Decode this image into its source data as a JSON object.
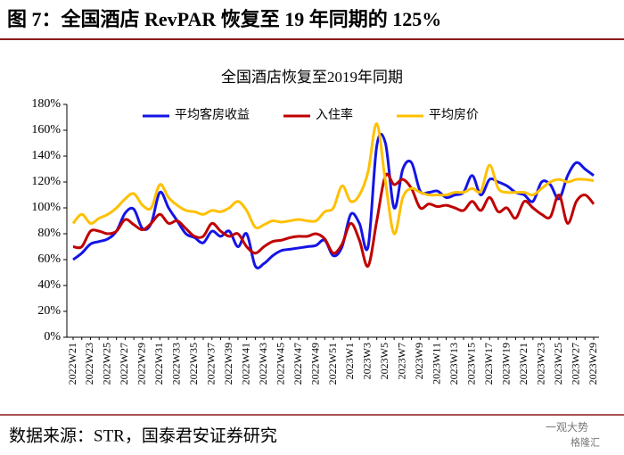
{
  "header": {
    "title": "图 7：全国酒店 RevPAR 恢复至 19 年同期的 125%"
  },
  "chart_data": {
    "type": "line",
    "title": "全国酒店恢复至2019年同期",
    "categories": [
      "2022W21",
      null,
      "2022W23",
      null,
      "2022W25",
      null,
      "2022W27",
      null,
      "2022W29",
      null,
      "2022W31",
      null,
      "2022W33",
      null,
      "2022W35",
      null,
      "2022W37",
      null,
      "2022W39",
      null,
      "2022W41",
      null,
      "2022W43",
      null,
      "2022W45",
      null,
      "2022W47",
      null,
      "2022W49",
      null,
      "2022W51",
      null,
      "2023W1",
      null,
      "2023W3",
      null,
      "2023W5",
      null,
      "2023W7",
      null,
      "2023W9",
      null,
      "2023W11",
      null,
      "2023W13",
      null,
      "2023W15",
      null,
      "2023W17",
      null,
      "2023W19",
      null,
      "2023W21",
      null,
      "2023W23",
      null,
      "2023W25",
      null,
      "2023W27",
      null,
      "2023W29"
    ],
    "series": [
      {
        "name": "平均客房收益",
        "color": "#1414e6",
        "values": [
          60,
          65,
          72,
          74,
          76,
          82,
          96,
          99,
          84,
          88,
          112,
          100,
          90,
          80,
          77,
          73,
          82,
          78,
          82,
          70,
          80,
          55,
          57,
          63,
          67,
          68,
          69,
          70,
          71,
          75,
          63,
          70,
          95,
          88,
          70,
          148,
          150,
          100,
          130,
          135,
          113,
          112,
          113,
          108,
          110,
          112,
          125,
          110,
          122,
          120,
          117,
          112,
          110,
          105,
          120,
          118,
          107,
          125,
          135,
          130,
          125
        ]
      },
      {
        "name": "入住率",
        "color": "#c00000",
        "values": [
          70,
          70,
          82,
          82,
          80,
          82,
          91,
          87,
          83,
          88,
          95,
          88,
          90,
          84,
          78,
          78,
          88,
          82,
          78,
          80,
          70,
          65,
          70,
          74,
          75,
          77,
          78,
          78,
          80,
          76,
          65,
          72,
          88,
          75,
          55,
          90,
          125,
          118,
          122,
          115,
          100,
          103,
          101,
          102,
          100,
          98,
          105,
          98,
          108,
          97,
          100,
          92,
          105,
          100,
          95,
          93,
          110,
          88,
          105,
          110,
          103
        ]
      },
      {
        "name": "平均房价",
        "color": "#ffc000",
        "values": [
          88,
          95,
          88,
          92,
          95,
          100,
          107,
          111,
          102,
          100,
          118,
          108,
          102,
          98,
          97,
          95,
          98,
          97,
          100,
          105,
          98,
          85,
          87,
          90,
          89,
          90,
          91,
          90,
          90,
          97,
          100,
          117,
          105,
          110,
          128,
          165,
          120,
          80,
          108,
          115,
          112,
          110,
          110,
          110,
          112,
          112,
          115,
          113,
          133,
          115,
          112,
          112,
          112,
          110,
          115,
          120,
          122,
          120,
          122,
          122,
          121
        ]
      }
    ],
    "ylim": [
      0,
      180
    ],
    "yticks": [
      {
        "value": 0,
        "label": "0%"
      },
      {
        "value": 20,
        "label": "20%"
      },
      {
        "value": 40,
        "label": "40%"
      },
      {
        "value": 60,
        "label": "60%"
      },
      {
        "value": 80,
        "label": "80%"
      },
      {
        "value": 100,
        "label": "100%"
      },
      {
        "value": 120,
        "label": "120%"
      },
      {
        "value": 140,
        "label": "140%"
      },
      {
        "value": 160,
        "label": "160%"
      },
      {
        "value": 180,
        "label": "180%"
      }
    ],
    "grid": false,
    "legend": "top"
  },
  "footer": {
    "source": "数据来源：STR，国泰君安证券研究",
    "watermark": [
      "一观大势",
      "格隆汇"
    ]
  }
}
